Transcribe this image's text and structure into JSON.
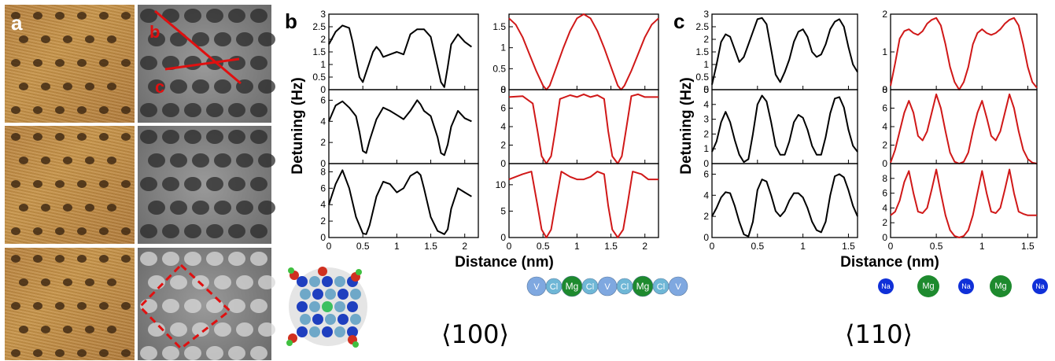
{
  "panel_letters": {
    "a": "a",
    "b": "b",
    "c": "c"
  },
  "line_labels": {
    "b": "b",
    "c": "c"
  },
  "colors": {
    "experiment": "#000000",
    "simulation": "#d01818",
    "annotation": "#e01010",
    "V": "#7fa8e0",
    "Cl": "#6fb7d6",
    "Mg": "#1e8a2e",
    "Na": "#1030d8"
  },
  "ylabel": "Detuning (Hz)",
  "xlabel": "Distance (nm)",
  "direction_labels": {
    "b": "⟨100⟩",
    "c": "⟨110⟩"
  },
  "atom_row_b": [
    "V",
    "Cl",
    "Mg",
    "Cl",
    "V",
    "Cl",
    "Mg",
    "Cl",
    "V"
  ],
  "atom_row_c": [
    "Na",
    "Mg",
    "Na",
    "Mg",
    "Na"
  ],
  "chart_data": [
    {
      "panel": "b",
      "column": "experiment",
      "type": "line",
      "rows": [
        {
          "ylim": [
            0,
            3
          ],
          "yticks": [
            "0",
            "0.5",
            "1",
            "1.5",
            "2",
            "2.5",
            "3"
          ],
          "xlim": [
            0,
            2.2
          ],
          "x": [
            0,
            0.1,
            0.2,
            0.3,
            0.35,
            0.4,
            0.45,
            0.5,
            0.55,
            0.6,
            0.65,
            0.7,
            0.75,
            0.8,
            0.9,
            1.0,
            1.1,
            1.2,
            1.3,
            1.4,
            1.5,
            1.55,
            1.6,
            1.65,
            1.7,
            1.75,
            1.8,
            1.9,
            2.0,
            2.1
          ],
          "y": [
            1.8,
            2.3,
            2.55,
            2.45,
            1.9,
            1.2,
            0.5,
            0.3,
            0.7,
            1.1,
            1.5,
            1.7,
            1.55,
            1.3,
            1.4,
            1.5,
            1.4,
            2.2,
            2.4,
            2.4,
            2.1,
            1.5,
            0.9,
            0.3,
            0.1,
            0.9,
            1.8,
            2.2,
            1.9,
            1.7
          ]
        },
        {
          "ylim": [
            0,
            7
          ],
          "yticks": [
            "0",
            "2",
            "4",
            "6"
          ],
          "xlim": [
            0,
            2.2
          ],
          "x": [
            0,
            0.1,
            0.2,
            0.3,
            0.4,
            0.45,
            0.5,
            0.55,
            0.6,
            0.7,
            0.8,
            0.9,
            1.0,
            1.1,
            1.2,
            1.3,
            1.35,
            1.4,
            1.5,
            1.6,
            1.65,
            1.7,
            1.75,
            1.8,
            1.9,
            2.0,
            2.1
          ],
          "y": [
            4.0,
            5.5,
            5.9,
            5.3,
            4.5,
            3.0,
            1.2,
            1.0,
            2.2,
            4.2,
            5.3,
            5.0,
            4.6,
            4.2,
            5.0,
            6.0,
            5.6,
            5.0,
            4.5,
            2.5,
            1.0,
            0.8,
            1.8,
            3.5,
            5.0,
            4.3,
            4.0
          ]
        },
        {
          "ylim": [
            0,
            9
          ],
          "yticks": [
            "0",
            "2",
            "4",
            "6",
            "8"
          ],
          "xlim": [
            0,
            2.2
          ],
          "x": [
            0,
            0.1,
            0.2,
            0.3,
            0.4,
            0.5,
            0.55,
            0.6,
            0.7,
            0.8,
            0.9,
            1.0,
            1.1,
            1.2,
            1.3,
            1.35,
            1.4,
            1.5,
            1.6,
            1.7,
            1.75,
            1.8,
            1.9,
            2.0,
            2.1
          ],
          "y": [
            4.0,
            6.5,
            8.2,
            6.0,
            2.5,
            0.5,
            0.4,
            1.5,
            5.0,
            6.8,
            6.5,
            5.5,
            6.0,
            7.5,
            8.0,
            7.6,
            6.0,
            2.5,
            0.8,
            0.4,
            1.0,
            3.5,
            6.0,
            5.5,
            5.0
          ]
        }
      ]
    },
    {
      "panel": "b",
      "column": "simulation",
      "type": "line",
      "rows": [
        {
          "ylim": [
            0,
            1.8
          ],
          "yticks": [
            "0",
            "0.5",
            "1",
            "1.5"
          ],
          "xlim": [
            0,
            2.2
          ],
          "x": [
            0,
            0.1,
            0.2,
            0.3,
            0.4,
            0.5,
            0.55,
            0.6,
            0.7,
            0.8,
            0.9,
            1.0,
            1.1,
            1.2,
            1.3,
            1.4,
            1.5,
            1.6,
            1.65,
            1.7,
            1.8,
            1.9,
            2.0,
            2.1,
            2.2
          ],
          "y": [
            1.7,
            1.55,
            1.25,
            0.85,
            0.45,
            0.1,
            0.0,
            0.1,
            0.55,
            1.0,
            1.4,
            1.7,
            1.8,
            1.7,
            1.4,
            1.0,
            0.55,
            0.1,
            0.0,
            0.1,
            0.45,
            0.85,
            1.25,
            1.55,
            1.7
          ]
        },
        {
          "ylim": [
            0,
            8
          ],
          "yticks": [
            "0",
            "2",
            "4",
            "6",
            "8"
          ],
          "xlim": [
            0,
            2.2
          ],
          "x": [
            0,
            0.2,
            0.35,
            0.42,
            0.48,
            0.55,
            0.62,
            0.68,
            0.75,
            0.9,
            1.0,
            1.1,
            1.2,
            1.3,
            1.4,
            1.46,
            1.52,
            1.6,
            1.66,
            1.72,
            1.8,
            1.9,
            2.0,
            2.2
          ],
          "y": [
            7.2,
            7.3,
            6.5,
            3.5,
            0.8,
            0.0,
            0.8,
            3.5,
            7.0,
            7.4,
            7.2,
            7.5,
            7.2,
            7.4,
            7.0,
            3.5,
            0.8,
            0.0,
            0.8,
            3.5,
            7.3,
            7.5,
            7.2,
            7.2
          ]
        },
        {
          "ylim": [
            0,
            14
          ],
          "yticks": [
            "0",
            "5",
            "10"
          ],
          "xlim": [
            0,
            2.2
          ],
          "x": [
            0,
            0.2,
            0.33,
            0.42,
            0.48,
            0.55,
            0.62,
            0.68,
            0.77,
            0.9,
            1.0,
            1.1,
            1.2,
            1.3,
            1.4,
            1.46,
            1.52,
            1.6,
            1.68,
            1.74,
            1.82,
            1.95,
            2.05,
            2.2
          ],
          "y": [
            11.0,
            12.0,
            12.5,
            6.0,
            1.5,
            0.0,
            1.5,
            6.0,
            12.5,
            11.5,
            11.0,
            11.0,
            11.5,
            12.5,
            12.0,
            6.0,
            1.5,
            0.0,
            1.5,
            6.0,
            12.5,
            12.0,
            11.0,
            11.0
          ]
        }
      ]
    },
    {
      "panel": "c",
      "column": "experiment",
      "type": "line",
      "rows": [
        {
          "ylim": [
            0,
            3
          ],
          "yticks": [
            "0",
            "0.5",
            "1",
            "1.5",
            "2",
            "2.5",
            "3"
          ],
          "xlim": [
            0,
            1.6
          ],
          "x": [
            0,
            0.05,
            0.1,
            0.15,
            0.2,
            0.25,
            0.3,
            0.35,
            0.4,
            0.45,
            0.5,
            0.55,
            0.6,
            0.65,
            0.7,
            0.75,
            0.8,
            0.85,
            0.9,
            0.95,
            1.0,
            1.05,
            1.1,
            1.15,
            1.2,
            1.25,
            1.3,
            1.35,
            1.4,
            1.45,
            1.5,
            1.55,
            1.6
          ],
          "y": [
            0.2,
            1.0,
            1.9,
            2.2,
            2.1,
            1.6,
            1.1,
            1.3,
            1.8,
            2.3,
            2.8,
            2.85,
            2.6,
            1.6,
            0.6,
            0.3,
            0.7,
            1.2,
            1.9,
            2.3,
            2.4,
            2.1,
            1.5,
            1.3,
            1.4,
            1.8,
            2.4,
            2.7,
            2.8,
            2.5,
            1.7,
            1.0,
            0.7
          ]
        },
        {
          "ylim": [
            0,
            5
          ],
          "yticks": [
            "0",
            "1",
            "2",
            "3",
            "4",
            "5"
          ],
          "xlim": [
            0,
            1.6
          ],
          "x": [
            0,
            0.05,
            0.1,
            0.15,
            0.2,
            0.25,
            0.3,
            0.35,
            0.4,
            0.45,
            0.5,
            0.55,
            0.6,
            0.65,
            0.7,
            0.75,
            0.8,
            0.85,
            0.9,
            0.95,
            1.0,
            1.05,
            1.1,
            1.15,
            1.2,
            1.25,
            1.3,
            1.35,
            1.4,
            1.45,
            1.5,
            1.55,
            1.6
          ],
          "y": [
            0.8,
            1.5,
            2.8,
            3.5,
            2.8,
            1.6,
            0.6,
            0.1,
            0.3,
            2.0,
            4.0,
            4.6,
            4.2,
            2.8,
            1.2,
            0.6,
            0.6,
            1.5,
            2.8,
            3.3,
            3.1,
            2.3,
            1.2,
            0.6,
            0.6,
            1.8,
            3.4,
            4.4,
            4.5,
            3.8,
            2.3,
            1.2,
            0.8
          ]
        },
        {
          "ylim": [
            0,
            7
          ],
          "yticks": [
            "0",
            "2",
            "4",
            "6"
          ],
          "xlim": [
            0,
            1.6
          ],
          "x": [
            0,
            0.05,
            0.1,
            0.15,
            0.2,
            0.25,
            0.3,
            0.35,
            0.4,
            0.45,
            0.5,
            0.55,
            0.6,
            0.65,
            0.7,
            0.75,
            0.8,
            0.85,
            0.9,
            0.95,
            1.0,
            1.05,
            1.1,
            1.15,
            1.2,
            1.25,
            1.3,
            1.35,
            1.4,
            1.45,
            1.5,
            1.55,
            1.6
          ],
          "y": [
            2.0,
            2.8,
            3.8,
            4.3,
            4.2,
            3.0,
            1.5,
            0.3,
            0.1,
            1.5,
            4.5,
            5.5,
            5.3,
            4.0,
            2.5,
            2.0,
            2.5,
            3.5,
            4.2,
            4.2,
            3.8,
            2.8,
            1.5,
            0.7,
            0.5,
            1.5,
            4.0,
            5.8,
            6.0,
            5.7,
            4.5,
            3.0,
            2.0
          ]
        }
      ]
    },
    {
      "panel": "c",
      "column": "simulation",
      "type": "line",
      "rows": [
        {
          "ylim": [
            0,
            2
          ],
          "yticks": [
            "0",
            "1",
            "2"
          ],
          "xlim": [
            0,
            1.6
          ],
          "x": [
            0,
            0.05,
            0.1,
            0.15,
            0.2,
            0.25,
            0.3,
            0.35,
            0.4,
            0.45,
            0.5,
            0.55,
            0.6,
            0.65,
            0.7,
            0.75,
            0.8,
            0.85,
            0.9,
            0.95,
            1.0,
            1.05,
            1.1,
            1.15,
            1.2,
            1.25,
            1.3,
            1.35,
            1.4,
            1.45,
            1.5,
            1.55,
            1.6
          ],
          "y": [
            0.1,
            0.7,
            1.35,
            1.55,
            1.6,
            1.5,
            1.45,
            1.55,
            1.75,
            1.85,
            1.9,
            1.7,
            1.2,
            0.6,
            0.2,
            0.0,
            0.2,
            0.6,
            1.2,
            1.5,
            1.6,
            1.5,
            1.45,
            1.5,
            1.6,
            1.75,
            1.85,
            1.9,
            1.7,
            1.2,
            0.6,
            0.2,
            0.05
          ]
        },
        {
          "ylim": [
            0,
            8
          ],
          "yticks": [
            "0",
            "2",
            "4",
            "6",
            "8"
          ],
          "xlim": [
            0,
            1.6
          ],
          "x": [
            0,
            0.05,
            0.1,
            0.15,
            0.2,
            0.25,
            0.3,
            0.35,
            0.4,
            0.45,
            0.5,
            0.55,
            0.6,
            0.65,
            0.7,
            0.75,
            0.8,
            0.85,
            0.9,
            0.95,
            1.0,
            1.05,
            1.1,
            1.15,
            1.2,
            1.25,
            1.3,
            1.35,
            1.4,
            1.45,
            1.5,
            1.55,
            1.6
          ],
          "y": [
            0.1,
            1.5,
            3.5,
            5.5,
            6.8,
            5.5,
            3.0,
            2.5,
            3.5,
            5.5,
            7.5,
            6.0,
            3.5,
            1.2,
            0.2,
            0.0,
            0.2,
            1.2,
            3.5,
            5.5,
            6.8,
            5.0,
            3.0,
            2.5,
            3.5,
            5.5,
            7.5,
            6.0,
            3.5,
            1.5,
            0.5,
            0.1,
            0.0
          ]
        },
        {
          "ylim": [
            0,
            10
          ],
          "yticks": [
            "0",
            "2",
            "4",
            "6",
            "8"
          ],
          "xlim": [
            0,
            1.6
          ],
          "x": [
            0,
            0.05,
            0.1,
            0.15,
            0.2,
            0.25,
            0.3,
            0.35,
            0.4,
            0.45,
            0.5,
            0.55,
            0.6,
            0.65,
            0.7,
            0.75,
            0.8,
            0.85,
            0.9,
            0.95,
            1.0,
            1.05,
            1.1,
            1.15,
            1.2,
            1.25,
            1.3,
            1.35,
            1.4,
            1.45,
            1.5,
            1.55,
            1.6
          ],
          "y": [
            3.0,
            3.5,
            5.0,
            7.5,
            9.0,
            6.0,
            3.5,
            3.3,
            4.0,
            6.5,
            9.2,
            6.0,
            3.0,
            1.0,
            0.2,
            0.0,
            0.2,
            1.0,
            3.0,
            6.0,
            9.0,
            6.0,
            3.5,
            3.3,
            4.0,
            6.5,
            9.2,
            6.0,
            3.5,
            3.2,
            3.0,
            3.0,
            3.0
          ]
        }
      ]
    }
  ]
}
